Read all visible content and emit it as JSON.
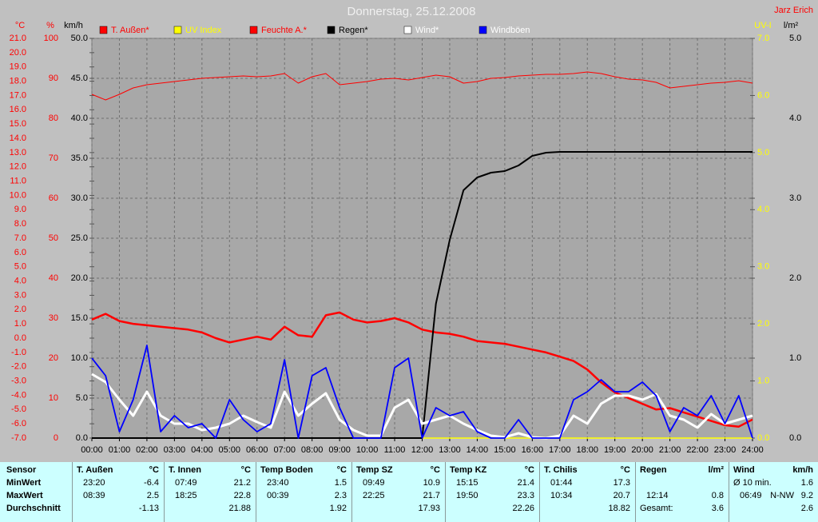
{
  "chart_data": {
    "type": "line",
    "title": "Donnerstag, 25.12.2008",
    "author": "Jarz Erich",
    "grid": true,
    "xlim": [
      0,
      24
    ],
    "xticks": [
      {
        "value": 0,
        "label": "00:00"
      },
      {
        "value": 1,
        "label": "01:00"
      },
      {
        "value": 2,
        "label": "02:00"
      },
      {
        "value": 3,
        "label": "03:00"
      },
      {
        "value": 4,
        "label": "04:00"
      },
      {
        "value": 5,
        "label": "05:00"
      },
      {
        "value": 6,
        "label": "06:00"
      },
      {
        "value": 7,
        "label": "07:00"
      },
      {
        "value": 8,
        "label": "08:00"
      },
      {
        "value": 9,
        "label": "09:00"
      },
      {
        "value": 10,
        "label": "10:00"
      },
      {
        "value": 11,
        "label": "11:00"
      },
      {
        "value": 12,
        "label": "12:00"
      },
      {
        "value": 13,
        "label": "13:00"
      },
      {
        "value": 14,
        "label": "14:00"
      },
      {
        "value": 15,
        "label": "15:00"
      },
      {
        "value": 16,
        "label": "16:00"
      },
      {
        "value": 17,
        "label": "17:00"
      },
      {
        "value": 18,
        "label": "18:00"
      },
      {
        "value": 19,
        "label": "19:00"
      },
      {
        "value": 20,
        "label": "20:00"
      },
      {
        "value": 21,
        "label": "21:00"
      },
      {
        "value": 22,
        "label": "22:00"
      },
      {
        "value": 23,
        "label": "23:00"
      },
      {
        "value": 24,
        "label": "24:00"
      }
    ],
    "axes": {
      "temp": {
        "label": "°C",
        "color": "#ff0000",
        "lim": [
          -7,
          21
        ],
        "ticks": [
          {
            "value": -7,
            "label": "-7.0"
          },
          {
            "value": -6,
            "label": "-6.0"
          },
          {
            "value": -5,
            "label": "-5.0"
          },
          {
            "value": -4,
            "label": "-4.0"
          },
          {
            "value": -3,
            "label": "-3.0"
          },
          {
            "value": -2,
            "label": "-2.0"
          },
          {
            "value": -1,
            "label": "-1.0"
          },
          {
            "value": 0,
            "label": "0.0"
          },
          {
            "value": 1,
            "label": "1.0"
          },
          {
            "value": 2,
            "label": "2.0"
          },
          {
            "value": 3,
            "label": "3.0"
          },
          {
            "value": 4,
            "label": "4.0"
          },
          {
            "value": 5,
            "label": "5.0"
          },
          {
            "value": 6,
            "label": "6.0"
          },
          {
            "value": 7,
            "label": "7.0"
          },
          {
            "value": 8,
            "label": "8.0"
          },
          {
            "value": 9,
            "label": "9.0"
          },
          {
            "value": 10,
            "label": "10.0"
          },
          {
            "value": 11,
            "label": "11.0"
          },
          {
            "value": 12,
            "label": "12.0"
          },
          {
            "value": 13,
            "label": "13.0"
          },
          {
            "value": 14,
            "label": "14.0"
          },
          {
            "value": 15,
            "label": "15.0"
          },
          {
            "value": 16,
            "label": "16.0"
          },
          {
            "value": 17,
            "label": "17.0"
          },
          {
            "value": 18,
            "label": "18.0"
          },
          {
            "value": 19,
            "label": "19.0"
          },
          {
            "value": 20,
            "label": "20.0"
          },
          {
            "value": 21,
            "label": "21.0"
          }
        ]
      },
      "hum": {
        "label": "%",
        "color": "#ff0000",
        "lim": [
          0,
          100
        ],
        "ticks": [
          0,
          10,
          20,
          30,
          40,
          50,
          60,
          70,
          80,
          90,
          100
        ]
      },
      "wind": {
        "label": "km/h",
        "color": "#000000",
        "lim": [
          0,
          50
        ],
        "grid": true,
        "ticks": [
          {
            "value": 0,
            "label": "0.0"
          },
          {
            "value": 5,
            "label": "5.0"
          },
          {
            "value": 10,
            "label": "10.0"
          },
          {
            "value": 15,
            "label": "15.0"
          },
          {
            "value": 20,
            "label": "20.0"
          },
          {
            "value": 25,
            "label": "25.0"
          },
          {
            "value": 30,
            "label": "30.0"
          },
          {
            "value": 35,
            "label": "35.0"
          },
          {
            "value": 40,
            "label": "40.0"
          },
          {
            "value": 45,
            "label": "45.0"
          },
          {
            "value": 50,
            "label": "50.0"
          }
        ]
      },
      "uv": {
        "label": "UV-I",
        "color": "#ffff00",
        "lim": [
          0,
          7
        ],
        "ticks": [
          {
            "value": 0,
            "label": "0.0"
          },
          {
            "value": 1,
            "label": "1.0"
          },
          {
            "value": 2,
            "label": "2.0"
          },
          {
            "value": 3,
            "label": "3.0"
          },
          {
            "value": 4,
            "label": "4.0"
          },
          {
            "value": 5,
            "label": "5.0"
          },
          {
            "value": 6,
            "label": "6.0"
          },
          {
            "value": 7,
            "label": "7.0"
          }
        ]
      },
      "rain": {
        "label": "l/m²",
        "color": "#000000",
        "lim": [
          0,
          5
        ],
        "ticks": [
          {
            "value": 0,
            "label": "0.0"
          },
          {
            "value": 1,
            "label": "1.0"
          },
          {
            "value": 2,
            "label": "2.0"
          },
          {
            "value": 3,
            "label": "3.0"
          },
          {
            "value": 4,
            "label": "4.0"
          },
          {
            "value": 5,
            "label": "5.0"
          }
        ]
      }
    },
    "x": [
      0,
      0.5,
      1,
      1.5,
      2,
      2.5,
      3,
      3.5,
      4,
      4.5,
      5,
      5.5,
      6,
      6.5,
      7,
      7.5,
      8,
      8.5,
      9,
      9.5,
      10,
      10.5,
      11,
      11.5,
      12,
      12.5,
      13,
      13.5,
      14,
      14.5,
      15,
      15.5,
      16,
      16.5,
      17,
      17.5,
      18,
      18.5,
      19,
      19.5,
      20,
      20.5,
      21,
      21.5,
      22,
      22.5,
      23,
      23.5,
      24
    ],
    "series": [
      {
        "name": "T. Außen*",
        "color": "#ff0000",
        "label_color": "#ff0000",
        "axis": "temp",
        "width": 2.5,
        "values": [
          1.3,
          1.7,
          1.2,
          1.0,
          0.9,
          0.8,
          0.7,
          0.6,
          0.4,
          0.0,
          -0.3,
          -0.1,
          0.1,
          -0.1,
          0.8,
          0.2,
          0.1,
          1.6,
          1.8,
          1.3,
          1.1,
          1.2,
          1.4,
          1.1,
          0.6,
          0.4,
          0.3,
          0.1,
          -0.2,
          -0.3,
          -0.4,
          -0.6,
          -0.8,
          -1.0,
          -1.3,
          -1.6,
          -2.2,
          -3.1,
          -3.8,
          -4.2,
          -4.6,
          -5.0,
          -4.9,
          -5.2,
          -5.5,
          -5.8,
          -6.1,
          -6.2,
          -5.7
        ]
      },
      {
        "name": "UV Index",
        "color": "#ffff00",
        "label_color": "#ffff00",
        "axis": "uv",
        "width": 1.5,
        "values": [
          0,
          0,
          0,
          0,
          0,
          0,
          0,
          0,
          0,
          0,
          0,
          0,
          0,
          0,
          0,
          0,
          0,
          0,
          0,
          0,
          0,
          0,
          0,
          0,
          0,
          0,
          0,
          0,
          0,
          0,
          0,
          0,
          0,
          0,
          0,
          0,
          0,
          0,
          0,
          0,
          0,
          0,
          0,
          0,
          0,
          0,
          0,
          0,
          0
        ]
      },
      {
        "name": "Feuchte A.*",
        "color": "#ff0000",
        "label_color": "#ff0000",
        "axis": "hum",
        "width": 1,
        "values": [
          86,
          84.6,
          86,
          87.6,
          88.4,
          88.8,
          89.2,
          89.6,
          90,
          90.2,
          90.4,
          90.6,
          90.4,
          90.6,
          91.2,
          88.8,
          90.4,
          91.2,
          88.4,
          88.8,
          89.2,
          89.8,
          90,
          89.6,
          90.2,
          90.8,
          90.4,
          88.8,
          89.2,
          90,
          90.2,
          90.6,
          90.8,
          91,
          91,
          91.2,
          91.6,
          91.2,
          90.4,
          89.8,
          89.6,
          89,
          87.6,
          88,
          88.4,
          88.8,
          89,
          89.4,
          88.8
        ]
      },
      {
        "name": "Regen*",
        "color": "#000000",
        "label_color": "#000000",
        "axis": "rain",
        "width": 2,
        "values": [
          0,
          0,
          0,
          0,
          0,
          0,
          0,
          0,
          0,
          0,
          0,
          0,
          0,
          0,
          0,
          0,
          0,
          0,
          0,
          0,
          0,
          0,
          0,
          0,
          0,
          1.68,
          2.48,
          3.1,
          3.26,
          3.32,
          3.34,
          3.41,
          3.53,
          3.57,
          3.58,
          3.58,
          3.58,
          3.58,
          3.58,
          3.58,
          3.58,
          3.58,
          3.58,
          3.58,
          3.58,
          3.58,
          3.58,
          3.58,
          3.58
        ]
      },
      {
        "name": "Wind*",
        "color": "#ffffff",
        "label_color": "#ffffff",
        "axis": "wind",
        "width": 3,
        "values": [
          8,
          7,
          4.8,
          2.8,
          5.8,
          2.8,
          1.8,
          1.8,
          1,
          1.3,
          1.8,
          2.8,
          2,
          1.3,
          5.8,
          2.8,
          4.3,
          5.6,
          2.3,
          1,
          0.3,
          0.3,
          3.8,
          4.8,
          1.8,
          2.3,
          2.8,
          1.8,
          1,
          0.3,
          0.1,
          0.6,
          0.1,
          0,
          0.3,
          2.8,
          1.8,
          4.3,
          5.3,
          5.3,
          4.8,
          5.5,
          2.8,
          2.3,
          1.3,
          3,
          1.8,
          2.3,
          2.8
        ]
      },
      {
        "name": "Windböen",
        "color": "#0000ff",
        "label_color": "#ffffff",
        "axis": "wind",
        "width": 1.8,
        "values": [
          10,
          7.8,
          0.8,
          4.8,
          11.6,
          0.8,
          2.8,
          1.3,
          1.8,
          0,
          4.8,
          2.3,
          0.8,
          1.8,
          9.8,
          0,
          7.8,
          8.8,
          3.8,
          0,
          0,
          0,
          8.8,
          10,
          0,
          3.8,
          2.8,
          3.3,
          0.8,
          0,
          0,
          2.3,
          0,
          0,
          0,
          4.8,
          5.8,
          7.3,
          5.8,
          5.8,
          7,
          5.3,
          0.8,
          3.8,
          2.8,
          5.3,
          1.8,
          5.3,
          0
        ]
      }
    ]
  },
  "table": {
    "header": "Sensor",
    "row_labels": [
      "MinWert",
      "MaxWert",
      "Durchschnitt"
    ],
    "columns": [
      {
        "name": "T. Außen",
        "unit": "°C",
        "min": {
          "time": "23:20",
          "value": -6.4
        },
        "max": {
          "time": "08:39",
          "value": 2.5
        },
        "avg": {
          "value": -1.13
        }
      },
      {
        "name": "T. Innen",
        "unit": "°C",
        "min": {
          "time": "07:49",
          "value": 21.2
        },
        "max": {
          "time": "18:25",
          "value": 22.8
        },
        "avg": {
          "value": 21.88
        }
      },
      {
        "name": "Temp Boden",
        "unit": "°C",
        "min": {
          "time": "23:40",
          "value": 1.5
        },
        "max": {
          "time": "00:39",
          "value": 2.3
        },
        "avg": {
          "value": 1.92
        }
      },
      {
        "name": "Temp SZ",
        "unit": "°C",
        "min": {
          "time": "09:49",
          "value": 10.9
        },
        "max": {
          "time": "22:25",
          "value": 21.7
        },
        "avg": {
          "value": 17.93
        }
      },
      {
        "name": "Temp KZ",
        "unit": "°C",
        "min": {
          "time": "15:15",
          "value": 21.4
        },
        "max": {
          "time": "19:50",
          "value": 23.3
        },
        "avg": {
          "value": 22.26
        }
      },
      {
        "name": "T. Chilis",
        "unit": "°C",
        "min": {
          "time": "01:44",
          "value": 17.3
        },
        "max": {
          "time": "10:34",
          "value": 20.7
        },
        "avg": {
          "value": 18.82
        }
      },
      {
        "name": "Regen",
        "unit": "l/m²",
        "max": {
          "time": "12:14",
          "value": 0.8
        },
        "avg": {
          "note": "Gesamt:",
          "value": 3.6
        }
      },
      {
        "name": "Wind",
        "unit": "km/h",
        "min": {
          "note": "Ø 10 min.",
          "value": 1.6
        },
        "max": {
          "time": "06:49",
          "note": "N-NW",
          "value": 9.2
        },
        "avg": {
          "value": 2.6
        }
      }
    ]
  }
}
